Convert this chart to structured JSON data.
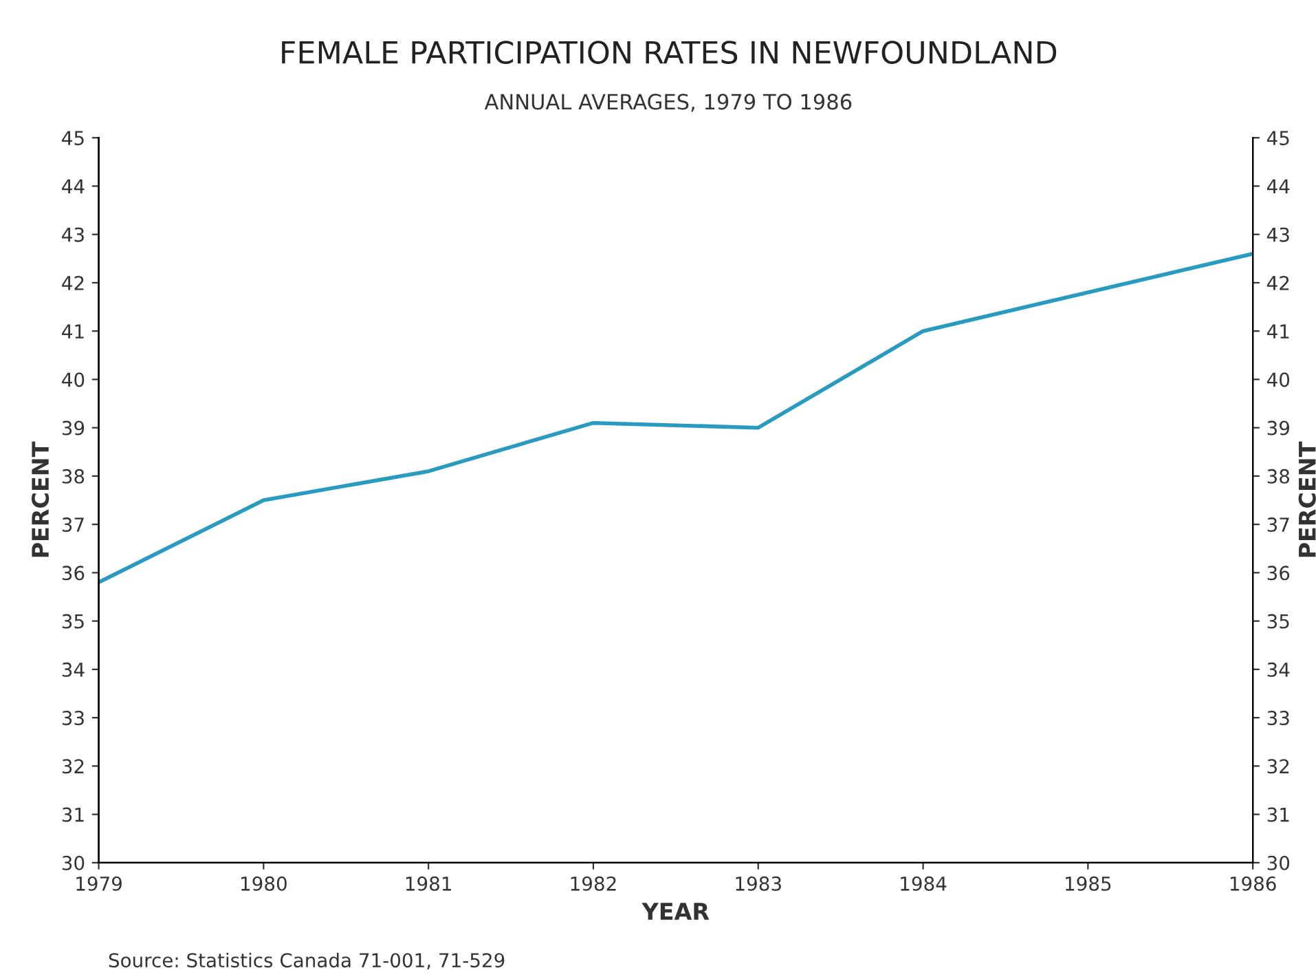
{
  "chart_data": {
    "type": "line",
    "title": "FEMALE PARTICIPATION RATES IN NEWFOUNDLAND",
    "subtitle": "ANNUAL AVERAGES, 1979 TO 1986",
    "xlabel": "YEAR",
    "ylabel": "PERCENT",
    "y2label": "PERCENT",
    "x": [
      1979,
      1980,
      1981,
      1982,
      1983,
      1984,
      1985,
      1986
    ],
    "series": [
      {
        "color": "#2a9bc0",
        "values": [
          35.8,
          37.5,
          38.1,
          39.1,
          39.0,
          41.0,
          41.8,
          42.6
        ]
      }
    ],
    "xlim": [
      1979,
      1986
    ],
    "xticks": [
      1979,
      1980,
      1981,
      1982,
      1983,
      1984,
      1985,
      1986
    ],
    "ylim": [
      30,
      45
    ],
    "yticks": [
      30,
      31,
      32,
      33,
      34,
      35,
      36,
      37,
      38,
      39,
      40,
      41,
      42,
      43,
      44,
      45
    ],
    "y2lim": [
      30,
      45
    ],
    "y2ticks": [
      30,
      31,
      32,
      33,
      34,
      35,
      36,
      37,
      38,
      39,
      40,
      41,
      42,
      43,
      44,
      45
    ],
    "grid": false,
    "legend": false,
    "marker": "none",
    "line_style": "solid",
    "annotations": [
      "Source: Statistics Canada 71-001, 71-529"
    ]
  }
}
